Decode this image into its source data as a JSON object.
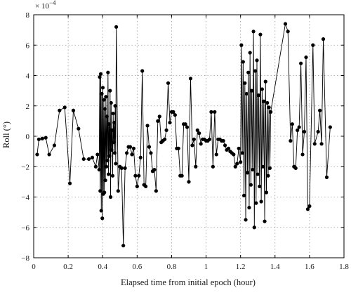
{
  "chart_data": {
    "type": "line",
    "xlabel": "Elapsed time from initial epoch (hour)",
    "ylabel": "Roll (°)",
    "y_multiplier": "× 10",
    "y_multiplier_exponent": "−4",
    "xlim": [
      0,
      1.8
    ],
    "ylim": [
      -8,
      8
    ],
    "x_ticks": [
      0,
      0.2,
      0.4,
      0.6,
      0.8,
      1,
      1.2,
      1.4,
      1.6,
      1.8
    ],
    "y_ticks": [
      -8,
      -6,
      -4,
      -2,
      0,
      2,
      4,
      6,
      8
    ],
    "x_tick_labels": [
      "0",
      "0.2",
      "0.4",
      "0.6",
      "0.8",
      "1",
      "1.2",
      "1.4",
      "1.6",
      "1.8"
    ],
    "y_tick_labels": [
      "−8",
      "−6",
      "−4",
      "−2",
      "0",
      "2",
      "4",
      "6",
      "8"
    ],
    "grid": true,
    "marker": "filled-circle",
    "color": "#000000",
    "series": [
      {
        "x": [
          0.02,
          0.03,
          0.05,
          0.07,
          0.09,
          0.12,
          0.15,
          0.18,
          0.21,
          0.23,
          0.26,
          0.29,
          0.32,
          0.34,
          0.36,
          0.37,
          0.38,
          0.383,
          0.386,
          0.389,
          0.392,
          0.395,
          0.398,
          0.401,
          0.404,
          0.407,
          0.41,
          0.413,
          0.416,
          0.419,
          0.422,
          0.425,
          0.428,
          0.431,
          0.434,
          0.437,
          0.44,
          0.443,
          0.446,
          0.449,
          0.452,
          0.455,
          0.458,
          0.461,
          0.464,
          0.467,
          0.47,
          0.473,
          0.476,
          0.479,
          0.49,
          0.5,
          0.51,
          0.52,
          0.53,
          0.54,
          0.55,
          0.56,
          0.57,
          0.58,
          0.59,
          0.6,
          0.61,
          0.62,
          0.63,
          0.64,
          0.65,
          0.66,
          0.67,
          0.68,
          0.69,
          0.7,
          0.71,
          0.72,
          0.73,
          0.74,
          0.75,
          0.76,
          0.77,
          0.78,
          0.79,
          0.8,
          0.81,
          0.82,
          0.83,
          0.84,
          0.85,
          0.86,
          0.87,
          0.88,
          0.89,
          0.9,
          0.91,
          0.92,
          0.93,
          0.94,
          0.95,
          0.96,
          0.97,
          0.98,
          0.99,
          1.0,
          1.01,
          1.02,
          1.03,
          1.04,
          1.05,
          1.06,
          1.07,
          1.08,
          1.09,
          1.1,
          1.11,
          1.12,
          1.13,
          1.14,
          1.15,
          1.16,
          1.17,
          1.18,
          1.19,
          1.2,
          1.205,
          1.21,
          1.215,
          1.22,
          1.225,
          1.23,
          1.235,
          1.24,
          1.245,
          1.25,
          1.255,
          1.26,
          1.265,
          1.27,
          1.275,
          1.28,
          1.285,
          1.29,
          1.295,
          1.3,
          1.305,
          1.31,
          1.315,
          1.32,
          1.325,
          1.33,
          1.335,
          1.34,
          1.345,
          1.35,
          1.355,
          1.36,
          1.365,
          1.37,
          1.375,
          1.46,
          1.475,
          1.49,
          1.5,
          1.51,
          1.52,
          1.53,
          1.54,
          1.55,
          1.56,
          1.57,
          1.58,
          1.59,
          1.6,
          1.62,
          1.63,
          1.65,
          1.66,
          1.67,
          1.68,
          1.7,
          1.72
        ],
        "y": [
          -1.2,
          -0.2,
          -0.15,
          -0.1,
          -1.2,
          -0.6,
          1.7,
          1.9,
          -3.1,
          1.7,
          0.5,
          -1.5,
          -1.5,
          -1.4,
          -2.0,
          -1.2,
          -2.2,
          3.9,
          -3.6,
          4.1,
          -4.9,
          2.8,
          -5.4,
          3.2,
          -3.8,
          2.4,
          -3.7,
          1.8,
          -2.9,
          2.6,
          -2.0,
          1.3,
          -1.6,
          4.2,
          -2.5,
          0.8,
          -1.3,
          3.0,
          -4.0,
          2.2,
          -0.9,
          0.4,
          -2.6,
          1.5,
          -0.4,
          0.9,
          -1.1,
          2.0,
          -1.8,
          7.2,
          -3.6,
          -2.0,
          -2.1,
          -7.2,
          -2.1,
          -1.1,
          -0.7,
          -0.7,
          -1.2,
          -0.8,
          -2.6,
          -3.3,
          -2.6,
          -1.4,
          4.3,
          -3.2,
          -3.3,
          0.7,
          -0.7,
          -1.1,
          -2.3,
          -2.2,
          -3.6,
          1.0,
          1.3,
          -0.4,
          -0.3,
          -0.2,
          0.4,
          3.5,
          0.9,
          1.6,
          1.6,
          1.4,
          -0.8,
          -0.8,
          -2.6,
          -2.6,
          0.8,
          0.8,
          0.6,
          -3.0,
          3.8,
          -0.6,
          -0.2,
          -2.0,
          0.4,
          0.2,
          -0.5,
          -0.2,
          -0.2,
          -0.3,
          -0.3,
          -0.2,
          1.6,
          -2.0,
          1.6,
          -1.2,
          -0.2,
          -0.2,
          -0.3,
          -0.3,
          -0.6,
          -0.9,
          -0.8,
          -1.0,
          -1.1,
          -1.2,
          -2.0,
          -1.8,
          -0.8,
          -1.7,
          6.0,
          -1.1,
          4.9,
          -3.9,
          3.5,
          -5.5,
          2.8,
          -2.4,
          4.2,
          -4.7,
          5.5,
          -3.2,
          3.0,
          -2.2,
          6.9,
          -6.0,
          4.3,
          -4.4,
          5.0,
          -2.5,
          2.7,
          -3.3,
          6.7,
          -4.3,
          3.1,
          -2.0,
          2.3,
          -5.6,
          3.6,
          -3.7,
          2.2,
          -2.6,
          1.9,
          -2.1,
          1.6,
          7.4,
          6.9,
          -0.3,
          0.8,
          -2.0,
          -2.1,
          0.4,
          0.6,
          4.8,
          -1.2,
          0.3,
          5.2,
          -4.8,
          -4.6,
          6.0,
          -0.5,
          0.3,
          1.7,
          -0.5,
          6.4,
          -2.7,
          0.6
        ]
      }
    ]
  }
}
